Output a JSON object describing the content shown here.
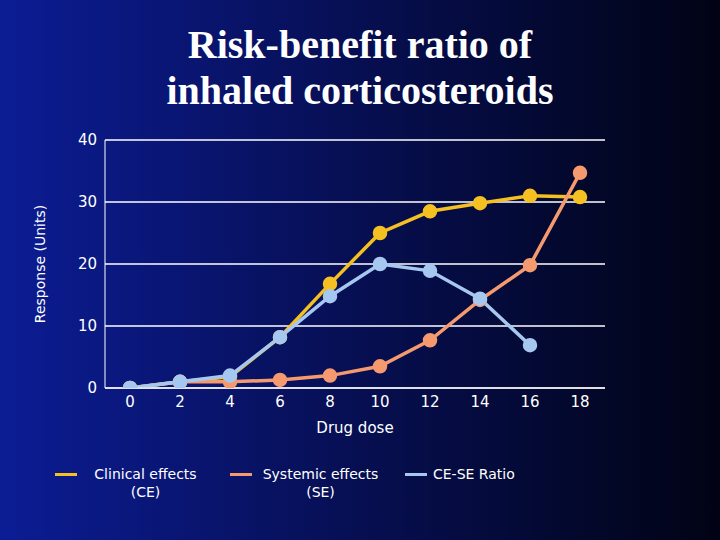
{
  "chart_data": {
    "type": "line",
    "title": "Risk-benefit ratio of inhaled corticosteroids",
    "x_label": "Drug dose",
    "y_label": "Response (Units)",
    "x": [
      0,
      2,
      4,
      6,
      8,
      10,
      12,
      14,
      16,
      18
    ],
    "series": [
      {
        "name": "Clinical effects (CE)",
        "color": "#f5c021",
        "values": [
          0,
          1,
          1.8,
          8.2,
          16.8,
          25,
          28.5,
          29.8,
          31,
          30.8
        ]
      },
      {
        "name": "Systemic effects (SE)",
        "color": "#f59a6e",
        "values": [
          0,
          1,
          1,
          1.3,
          2,
          3.5,
          7.7,
          14.2,
          19.8,
          34.7
        ]
      },
      {
        "name": "CE-SE Ratio",
        "color": "#a6c8f0",
        "values": [
          0,
          1,
          2,
          8.2,
          14.8,
          20,
          18.9,
          14.4,
          6.9,
          null
        ]
      }
    ],
    "xlim": [
      -1,
      19
    ],
    "xticks": [
      0,
      2,
      4,
      6,
      8,
      10,
      12,
      14,
      16,
      18
    ],
    "ylim": [
      0,
      40
    ],
    "yticks": [
      0,
      10,
      20,
      30,
      40
    ],
    "grid": true,
    "legend": "bottom",
    "marker": "circle"
  }
}
